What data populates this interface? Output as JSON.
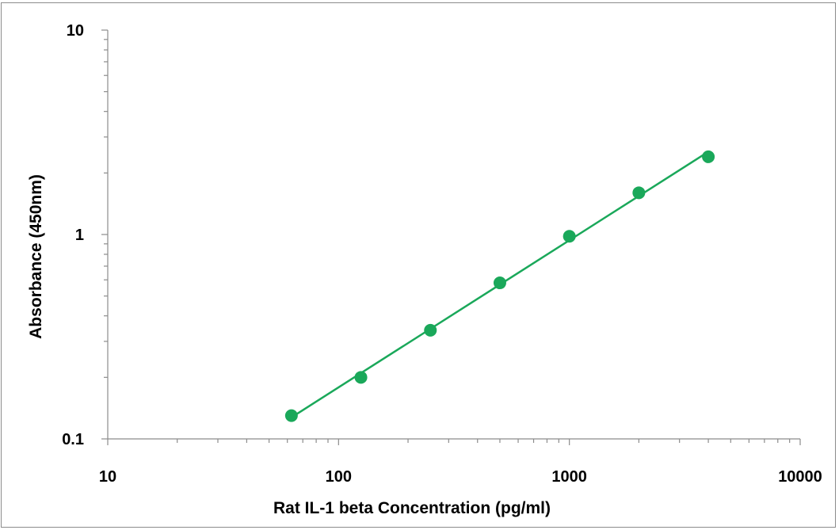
{
  "chart_data": {
    "type": "scatter",
    "title": "",
    "xlabel": "Rat IL-1 beta Concentration (pg/ml)",
    "ylabel": "Absorbance (450nm)",
    "xscale": "log",
    "yscale": "log",
    "xlim": [
      10,
      10000
    ],
    "ylim": [
      0.1,
      10
    ],
    "xticks": [
      "10",
      "100",
      "1000",
      "10000"
    ],
    "yticks": [
      "0.1",
      "1",
      "10"
    ],
    "grid": false,
    "legend": "none",
    "series": [
      {
        "x": [
          62.5,
          125,
          250,
          500,
          1000,
          2000,
          4000
        ],
        "y": [
          0.13,
          0.2,
          0.34,
          0.58,
          0.98,
          1.6,
          2.4
        ],
        "color": "#1aa85a",
        "marker": "circle",
        "fit_line": true
      }
    ]
  }
}
